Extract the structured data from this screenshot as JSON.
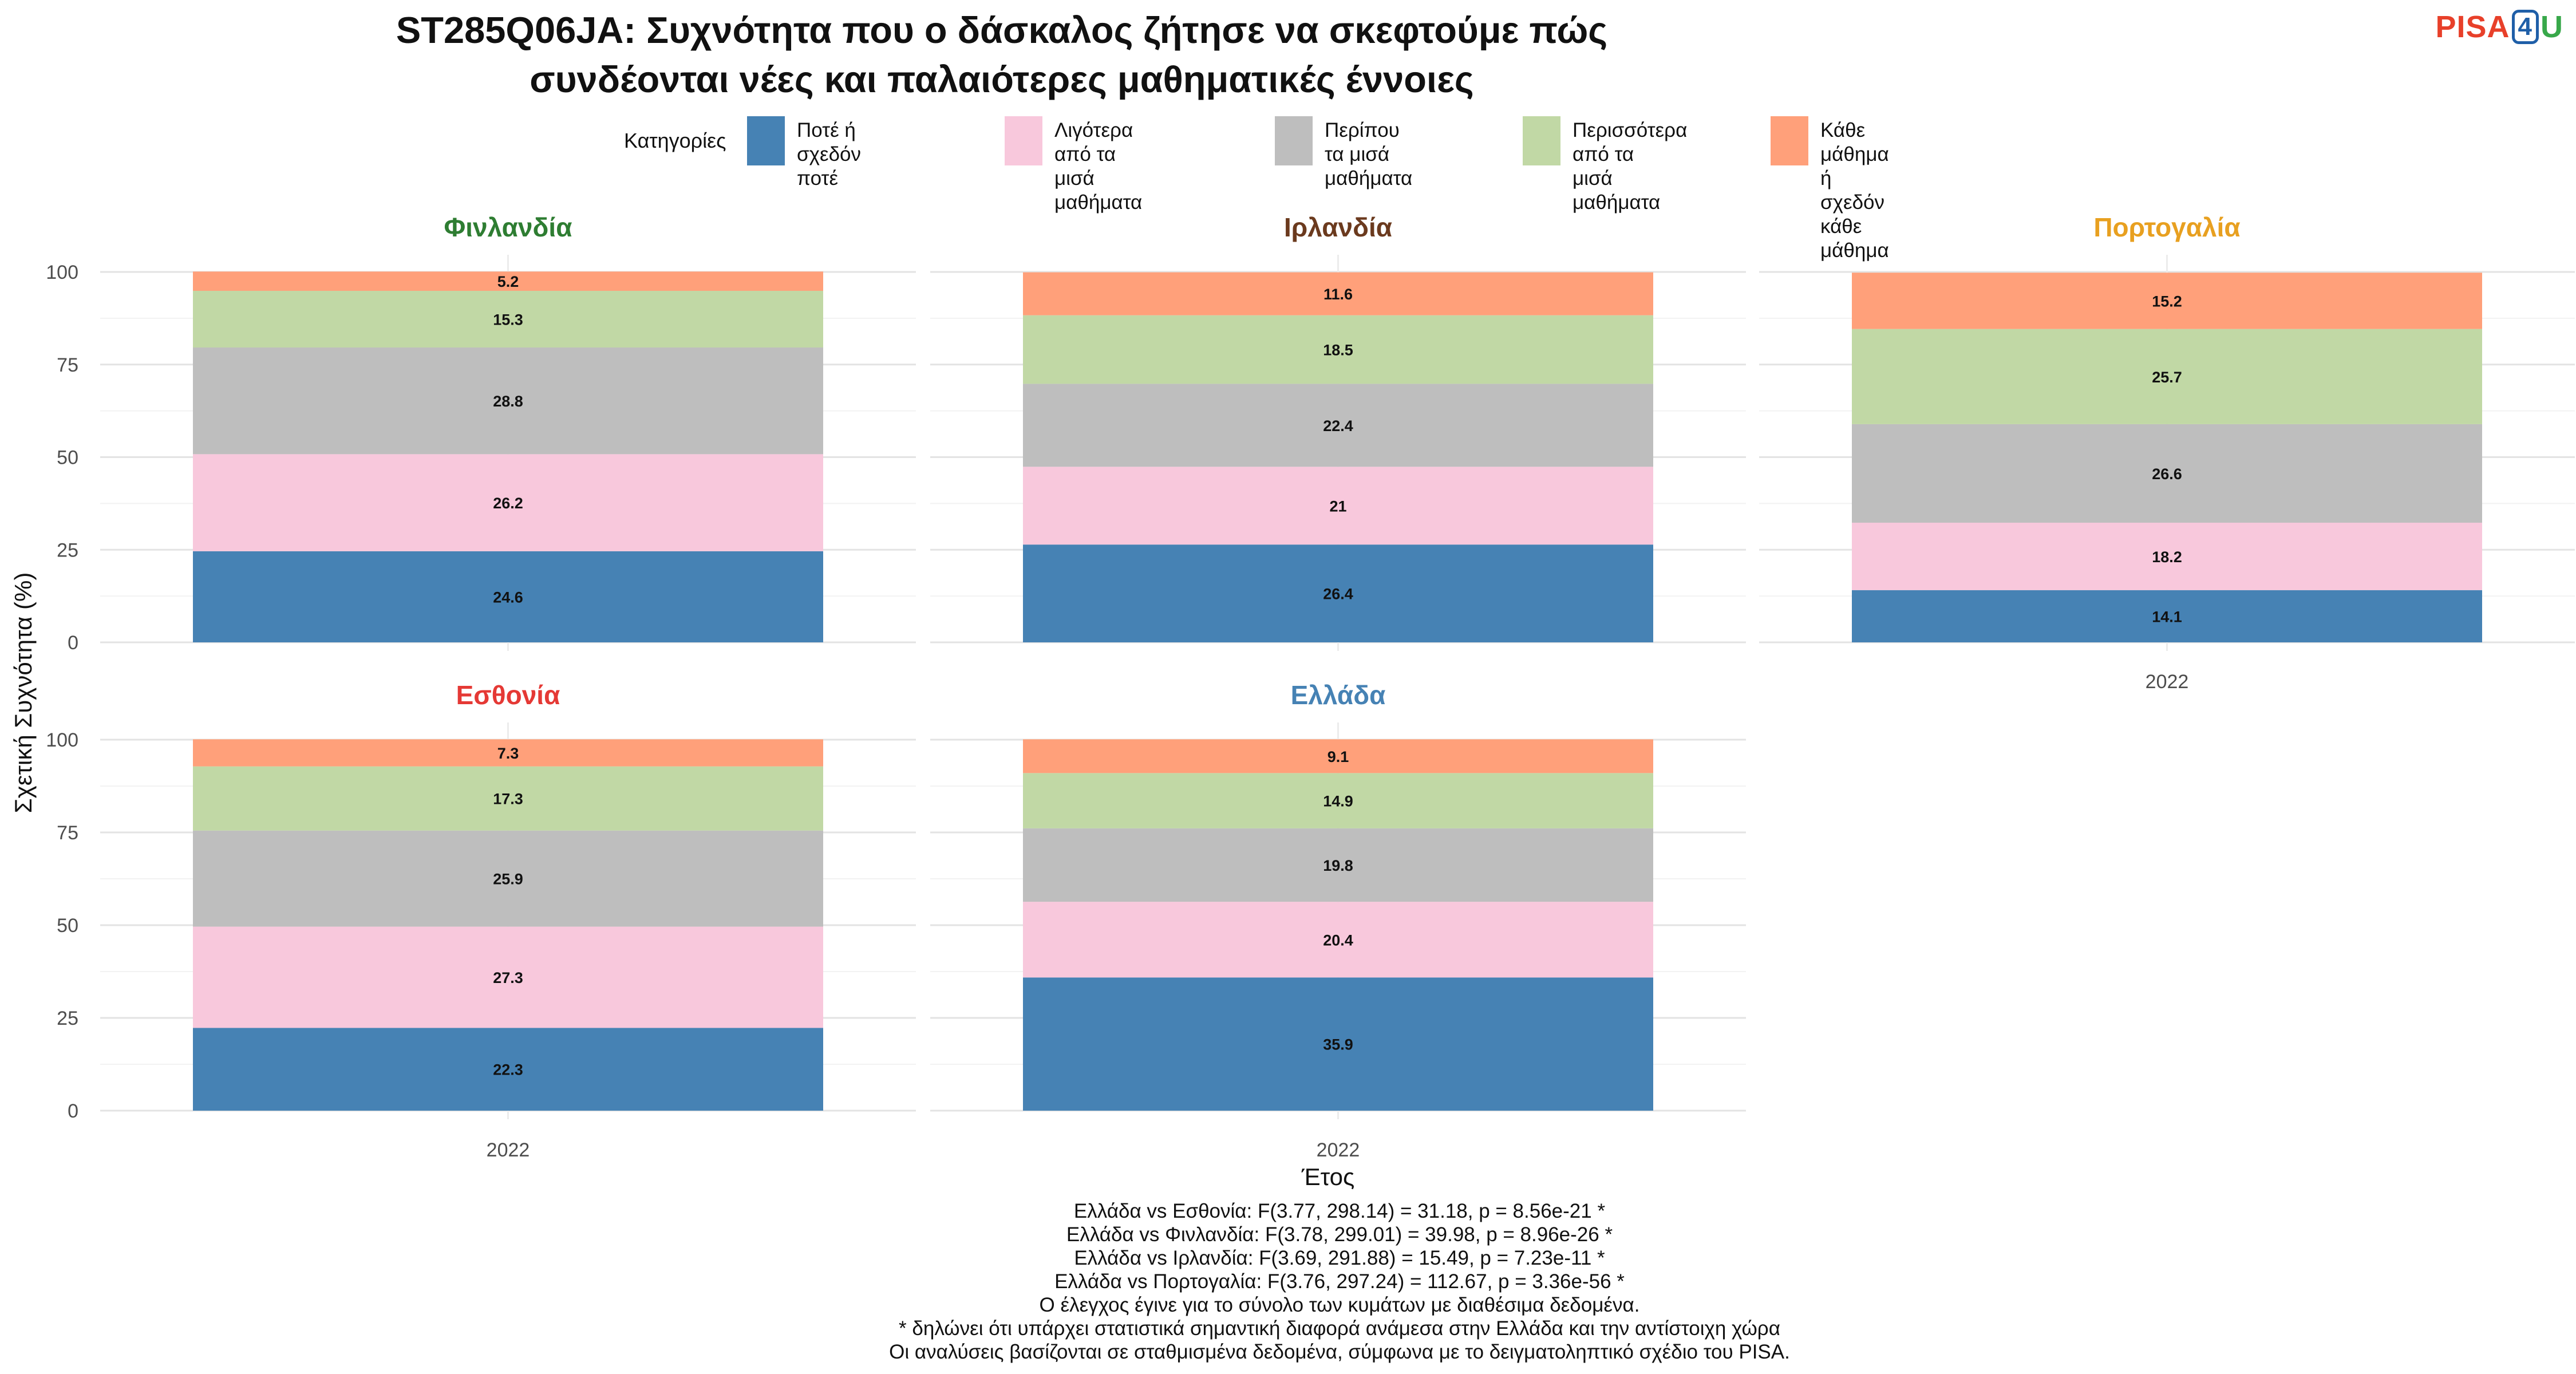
{
  "title_lines": [
    "ST285Q06JA: Συχνότητα που ο δάσκαλος ζήτησε να σκεφτούμε πώς",
    "συνδέονται νέες και παλαιότερες μαθηματικές έννοιες"
  ],
  "logo": {
    "p1": "PISA",
    "num": "4",
    "p2": "U"
  },
  "legend": {
    "title": "Κατηγορίες",
    "items": [
      {
        "label": "Ποτέ ή σχεδόν ποτέ",
        "color": "#4682B4"
      },
      {
        "label": "Λιγότερα από τα μισά\nμαθήματα",
        "color": "#F8C8DC"
      },
      {
        "label": "Περίπου τα μισά\nμαθήματα",
        "color": "#BEBEBE"
      },
      {
        "label": "Περισσότερα από τα\nμισά μαθήματα",
        "color": "#C1D8A5"
      },
      {
        "label": "Κάθε μάθημα ή σχεδόν\nκάθε μάθημα",
        "color": "#FFA07A"
      }
    ]
  },
  "footer": [
    "Ελλάδα vs Εσθονία: F(3.77, 298.14) = 31.18, p = 8.56e-21 *",
    "Ελλάδα vs Φινλανδία: F(3.78, 299.01) = 39.98, p = 8.96e-26 *",
    "Ελλάδα vs Ιρλανδία: F(3.69, 291.88) = 15.49, p = 7.23e-11 *",
    "Ελλάδα vs Πορτογαλία: F(3.76, 297.24) = 112.67, p = 3.36e-56 *",
    "Ο έλεγχος έγινε για το σύνολο των κυμάτων με διαθέσιμα δεδομένα.",
    "* δηλώνει ότι υπάρχει στατιστικά σημαντική διαφορά ανάμεσα στην Ελλάδα και την αντίστοιχη χώρα",
    "Οι αναλύσεις βασίζονται σε σταθμισμένα δεδομένα, σύμφωνα με το δειγματοληπτικό σχέδιο του PISA."
  ],
  "chart_data": {
    "type": "bar",
    "stacked": true,
    "xlabel": "Έτος",
    "ylabel": "Σχετική Συχνότητα (%)",
    "ylim": [
      0,
      100
    ],
    "yticks": [
      0,
      25,
      50,
      75,
      100
    ],
    "categories": [
      "2022"
    ],
    "facets": [
      {
        "name": "Φινλανδία",
        "color": "#2E7D32",
        "values": [
          24.6,
          26.2,
          28.8,
          15.3,
          5.2
        ],
        "labels": [
          "24.6",
          "26.2",
          "28.8",
          "15.3",
          "5.2"
        ]
      },
      {
        "name": "Ιρλανδία",
        "color": "#6B3A1E",
        "values": [
          26.4,
          21,
          22.4,
          18.5,
          11.6
        ],
        "labels": [
          "26.4",
          "21",
          "22.4",
          "18.5",
          "11.6"
        ]
      },
      {
        "name": "Πορτογαλία",
        "color": "#E8A020",
        "values": [
          14.1,
          18.2,
          26.6,
          25.7,
          15.2
        ],
        "labels": [
          "14.1",
          "18.2",
          "26.6",
          "25.7",
          "15.2"
        ]
      },
      {
        "name": "Εσθονία",
        "color": "#E53935",
        "values": [
          22.3,
          27.3,
          25.9,
          17.3,
          7.3
        ],
        "labels": [
          "22.3",
          "27.3",
          "25.9",
          "17.3",
          "7.3"
        ]
      },
      {
        "name": "Ελλάδα",
        "color": "#4682B4",
        "values": [
          35.9,
          20.4,
          19.8,
          14.9,
          9.1
        ],
        "labels": [
          "35.9",
          "20.4",
          "19.8",
          "14.9",
          "9.1"
        ]
      }
    ]
  }
}
